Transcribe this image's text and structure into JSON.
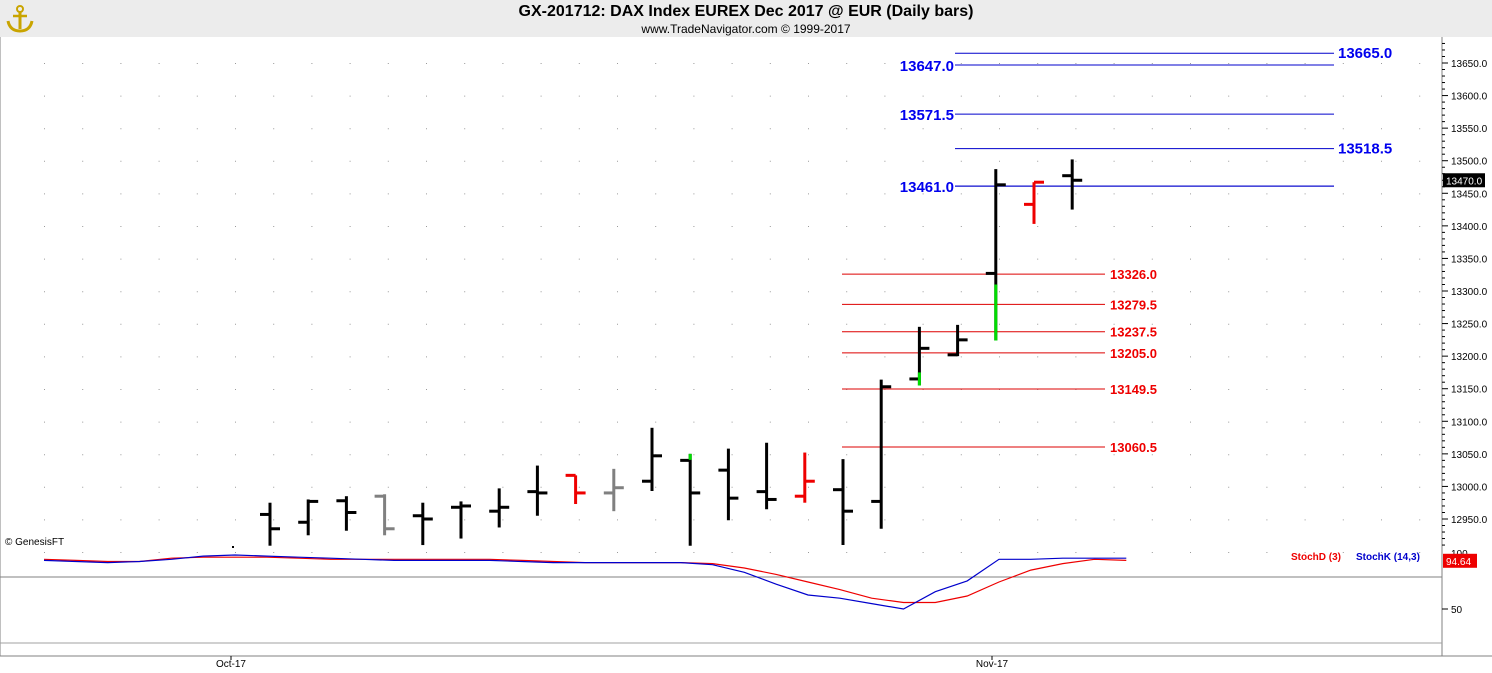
{
  "header": {
    "title": "GX-201712:  DAX Index EUREX Dec 2017 @ EUR  (Daily bars)",
    "subtitle": "www.TradeNavigator.com © 1999-2017"
  },
  "credit": "© GenesisFT",
  "colors": {
    "up": "#000000",
    "down": "#000000",
    "red": "#ee0000",
    "gray": "#808080",
    "green": "#00dd00",
    "blue_level": "#0000cc",
    "red_level": "#dd0000",
    "stochD": "#ee0000",
    "stochK": "#0000cc"
  },
  "chart_data": [
    {
      "type": "ohlc",
      "title": "GX-201712:  DAX Index EUREX Dec 2017 @ EUR  (Daily bars)",
      "x_tick_labels": [
        "Oct-17",
        "Nov-17"
      ],
      "y_ticks": [
        12950,
        13000,
        13050,
        13100,
        13150,
        13200,
        13250,
        13300,
        13350,
        13400,
        13450,
        13500,
        13550,
        13600,
        13650
      ],
      "ylim": [
        12900,
        13680
      ],
      "last_price": "13470.0",
      "grid": "dotted",
      "bars": [
        {
          "o": 12957,
          "h": 12975,
          "l": 12909,
          "c": 12935,
          "color": "black"
        },
        {
          "o": 12945,
          "h": 12980,
          "l": 12925,
          "c": 12977,
          "color": "black"
        },
        {
          "o": 12978,
          "h": 12985,
          "l": 12932,
          "c": 12960,
          "color": "black"
        },
        {
          "o": 12985,
          "h": 12988,
          "l": 12925,
          "c": 12935,
          "color": "gray"
        },
        {
          "o": 12955,
          "h": 12975,
          "l": 12910,
          "c": 12950,
          "color": "black"
        },
        {
          "o": 12968,
          "h": 12977,
          "l": 12920,
          "c": 12970,
          "color": "black"
        },
        {
          "o": 12962,
          "h": 12997,
          "l": 12937,
          "c": 12968,
          "color": "black"
        },
        {
          "o": 12992,
          "h": 13032,
          "l": 12955,
          "c": 12990,
          "color": "black"
        },
        {
          "o": 13017,
          "h": 13017,
          "l": 12973,
          "c": 12990,
          "color": "red"
        },
        {
          "o": 12990,
          "h": 13027,
          "l": 12962,
          "c": 12998,
          "color": "gray"
        },
        {
          "o": 13008,
          "h": 13090,
          "l": 12993,
          "c": 13047,
          "color": "black"
        },
        {
          "o": 13040,
          "h": 13050,
          "l": 12909,
          "c": 12990,
          "color": "black",
          "green_tip": true
        },
        {
          "o": 13025,
          "h": 13058,
          "l": 12948,
          "c": 12982,
          "color": "black"
        },
        {
          "o": 12992,
          "h": 13067,
          "l": 12965,
          "c": 12980,
          "color": "black"
        },
        {
          "o": 12985,
          "h": 13052,
          "l": 12975,
          "c": 13008,
          "color": "red"
        },
        {
          "o": 12995,
          "h": 13042,
          "l": 12910,
          "c": 12962,
          "color": "black"
        },
        {
          "o": 12977,
          "h": 13164,
          "l": 12935,
          "c": 13153,
          "color": "black"
        },
        {
          "o": 13165,
          "h": 13245,
          "l": 13155,
          "c": 13212,
          "color": "black",
          "green_low": true
        },
        {
          "o": 13202,
          "h": 13248,
          "l": 13200,
          "c": 13225,
          "color": "black"
        },
        {
          "o": 13327,
          "h": 13487,
          "l": 13224,
          "c": 13463,
          "color": "black",
          "green_low": true
        },
        {
          "o": 13433,
          "h": 13467,
          "l": 13403,
          "c": 13467,
          "color": "red"
        },
        {
          "o": 13477,
          "h": 13502,
          "l": 13425,
          "c": 13470,
          "color": "black"
        }
      ],
      "levels_blue": [
        {
          "value": 13665.0,
          "label": "13665.0",
          "side": "right"
        },
        {
          "value": 13647.0,
          "label": "13647.0",
          "side": "left"
        },
        {
          "value": 13571.5,
          "label": "13571.5",
          "side": "left"
        },
        {
          "value": 13518.5,
          "label": "13518.5",
          "side": "right"
        },
        {
          "value": 13461.0,
          "label": "13461.0",
          "side": "left"
        }
      ],
      "levels_red": [
        {
          "value": 13326.0,
          "label": "13326.0"
        },
        {
          "value": 13279.5,
          "label": "13279.5"
        },
        {
          "value": 13237.5,
          "label": "13237.5"
        },
        {
          "value": 13205.0,
          "label": "13205.0"
        },
        {
          "value": 13149.5,
          "label": "13149.5"
        },
        {
          "value": 13060.5,
          "label": "13060.5"
        }
      ]
    },
    {
      "type": "line",
      "title": "",
      "y_ticks": [
        50
      ],
      "y_top_label": "100",
      "ylim": [
        25,
        107
      ],
      "last_value": "94.64",
      "series": [
        {
          "name": "StochD (3)",
          "color": "#ee0000",
          "values": [
            96,
            95,
            94,
            94,
            97,
            98,
            98,
            98,
            97,
            96,
            96,
            96,
            96,
            96,
            96,
            95,
            94,
            93,
            93,
            93,
            93,
            92,
            88,
            82,
            75,
            68,
            60,
            56,
            56,
            62,
            75,
            86,
            92,
            96,
            95
          ]
        },
        {
          "name": "StochK (14,3)",
          "color": "#0000cc",
          "values": [
            95,
            94,
            93,
            94,
            96,
            99,
            100,
            99,
            98,
            97,
            96,
            95,
            95,
            95,
            95,
            94,
            93,
            93,
            93,
            93,
            93,
            91,
            84,
            73,
            63,
            60,
            55,
            50,
            66,
            76,
            96,
            96,
            97,
            97,
            97
          ]
        }
      ]
    }
  ]
}
